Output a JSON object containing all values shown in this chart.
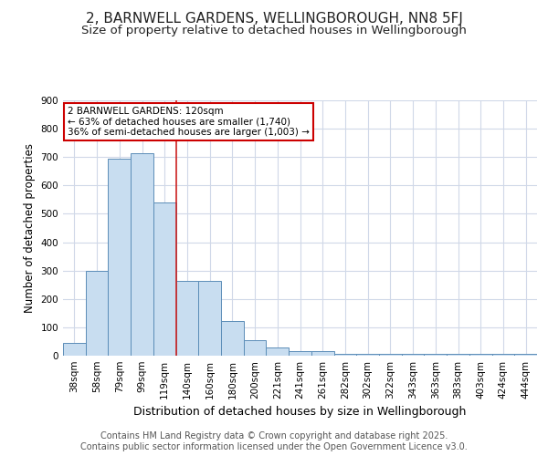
{
  "title": "2, BARNWELL GARDENS, WELLINGBOROUGH, NN8 5FJ",
  "subtitle": "Size of property relative to detached houses in Wellingborough",
  "xlabel": "Distribution of detached houses by size in Wellingborough",
  "ylabel": "Number of detached properties",
  "categories": [
    "38sqm",
    "58sqm",
    "79sqm",
    "99sqm",
    "119sqm",
    "140sqm",
    "160sqm",
    "180sqm",
    "200sqm",
    "221sqm",
    "241sqm",
    "261sqm",
    "282sqm",
    "302sqm",
    "322sqm",
    "343sqm",
    "363sqm",
    "383sqm",
    "403sqm",
    "424sqm",
    "444sqm"
  ],
  "values": [
    45,
    300,
    695,
    715,
    540,
    265,
    265,
    122,
    55,
    28,
    17,
    17,
    5,
    5,
    5,
    5,
    5,
    8,
    5,
    5,
    8
  ],
  "bar_color": "#c8ddf0",
  "bar_edge_color": "#5b8db8",
  "vline_x": 4.5,
  "vline_color": "#cc2222",
  "annotation_text": "2 BARNWELL GARDENS: 120sqm\n← 63% of detached houses are smaller (1,740)\n36% of semi-detached houses are larger (1,003) →",
  "annotation_box_color": "#ffffff",
  "annotation_box_edge_color": "#cc0000",
  "ylim": [
    0,
    900
  ],
  "yticks": [
    0,
    100,
    200,
    300,
    400,
    500,
    600,
    700,
    800,
    900
  ],
  "bg_color": "#ffffff",
  "plot_bg_color": "#ffffff",
  "grid_color": "#d0d8e8",
  "footer_text": "Contains HM Land Registry data © Crown copyright and database right 2025.\nContains public sector information licensed under the Open Government Licence v3.0.",
  "title_fontsize": 11,
  "subtitle_fontsize": 9.5,
  "xlabel_fontsize": 9,
  "ylabel_fontsize": 8.5,
  "tick_fontsize": 7.5,
  "footer_fontsize": 7
}
